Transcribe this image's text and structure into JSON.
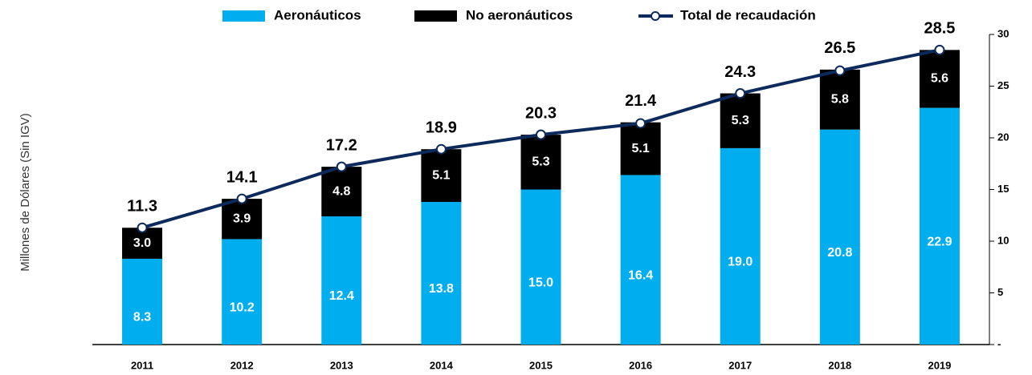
{
  "chart_data": {
    "type": "bar",
    "y_axis_label": "Millones de Dólares (Sin IGV)",
    "categories": [
      "2011",
      "2012",
      "2013",
      "2014",
      "2015",
      "2016",
      "2017",
      "2018",
      "2019"
    ],
    "series": [
      {
        "name": "Aeronáuticos",
        "type": "bar",
        "color": "#00aeef",
        "values": [
          8.3,
          10.2,
          12.4,
          13.8,
          15.0,
          16.4,
          19.0,
          20.8,
          22.9
        ],
        "value_labels": [
          "8.3",
          "10.2",
          "12.4",
          "13.8",
          "15.0",
          "16.4",
          "19.0",
          "20.8",
          "22.9"
        ]
      },
      {
        "name": "No aeronáuticos",
        "type": "bar",
        "color": "#000000",
        "values": [
          3.0,
          3.9,
          4.8,
          5.1,
          5.3,
          5.1,
          5.3,
          5.8,
          5.6
        ],
        "value_labels": [
          "3.0",
          "3.9",
          "4.8",
          "5.1",
          "5.3",
          "5.1",
          "5.3",
          "5.8",
          "5.6"
        ]
      },
      {
        "name": "Total de recaudación",
        "type": "line",
        "color": "#0d2a5c",
        "values": [
          11.3,
          14.1,
          17.2,
          18.9,
          20.3,
          21.4,
          24.3,
          26.5,
          28.5
        ],
        "value_labels": [
          "11.3",
          "14.1",
          "17.2",
          "18.9",
          "20.3",
          "21.4",
          "24.3",
          "26.5",
          "28.5"
        ]
      }
    ],
    "ylim": [
      0,
      30
    ],
    "yticks": [
      {
        "value": 0,
        "label": "-"
      },
      5,
      10,
      15,
      20,
      25,
      30
    ],
    "y_axis_side": "right",
    "grid": false
  }
}
